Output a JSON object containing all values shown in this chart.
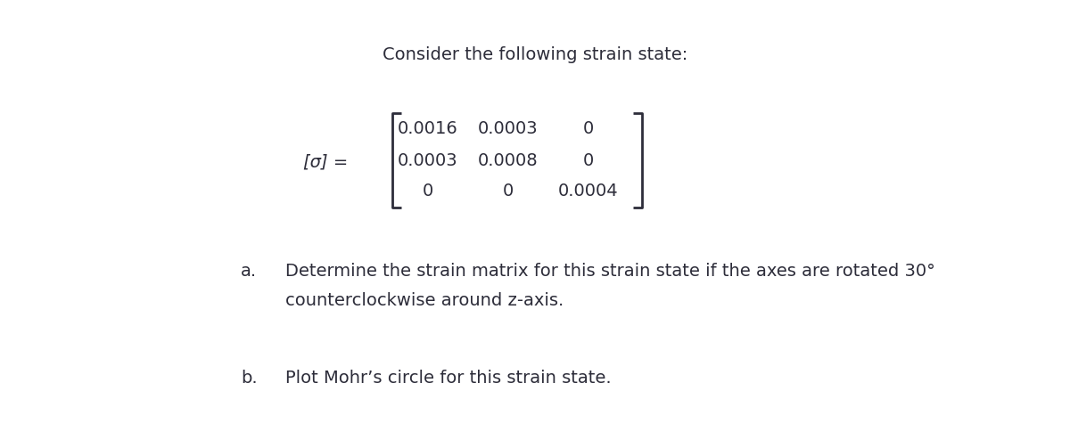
{
  "title": "Consider the following strain state:",
  "title_fontsize": 14,
  "background_color": "#ffffff",
  "matrix_label": "[σ] =",
  "matrix_rows": [
    [
      "0.0016",
      "0.0003",
      "0"
    ],
    [
      "0.0003",
      "0.0008",
      "0"
    ],
    [
      "0",
      "0",
      "0.0004"
    ]
  ],
  "item_a_label": "a.",
  "item_a_text_line1": "Determine the strain matrix for this strain state if the axes are rotated 30°",
  "item_a_text_line2": "counterclockwise around z-axis.",
  "item_b_label": "b.",
  "item_b_text": "Plot Mohr’s circle for this strain state.",
  "text_fontsize": 14,
  "text_color": "#1a1a2e",
  "matrix_fontsize": 14
}
